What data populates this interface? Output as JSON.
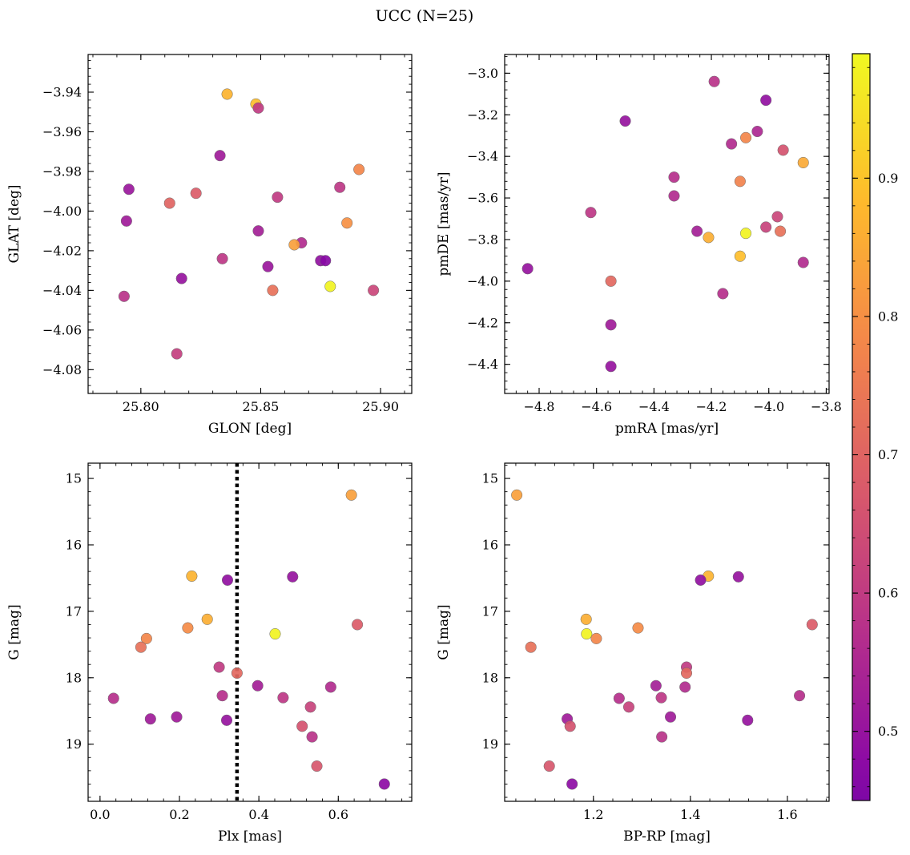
{
  "figure": {
    "title": "UCC (N=25)"
  },
  "colorbar": {
    "cmap": "plasma",
    "range": [
      0.45,
      0.99
    ],
    "ticks": [
      0.5,
      0.6,
      0.7,
      0.8,
      0.9
    ],
    "tick_labels": [
      "0.5",
      "0.6",
      "0.7",
      "0.8",
      "0.9"
    ]
  },
  "chart_data": [
    {
      "type": "scatter",
      "xlabel": "GLON [deg]",
      "ylabel": "GLAT [deg]",
      "xlim": [
        25.778,
        25.913
      ],
      "ylim": [
        -4.092,
        -3.921
      ],
      "y_inverted": false,
      "xticks": [
        25.8,
        25.85,
        25.9
      ],
      "xtick_labels": [
        "25.80",
        "25.85",
        "25.90"
      ],
      "yticks": [
        -3.94,
        -3.96,
        -3.98,
        -4.0,
        -4.02,
        -4.04,
        -4.06,
        -4.08
      ],
      "ytick_labels": [
        "−3.94",
        "−3.96",
        "−3.98",
        "−4.00",
        "−4.02",
        "−4.04",
        "−4.06",
        "−4.08"
      ],
      "x": [
        25.836,
        25.848,
        25.849,
        25.833,
        25.891,
        25.795,
        25.812,
        25.823,
        25.857,
        25.883,
        25.794,
        25.849,
        25.867,
        25.864,
        25.886,
        25.875,
        25.877,
        25.834,
        25.853,
        25.817,
        25.855,
        25.879,
        25.897,
        25.793,
        25.815
      ],
      "y": [
        -3.941,
        -3.946,
        -3.948,
        -3.972,
        -3.979,
        -3.989,
        -3.996,
        -3.991,
        -3.993,
        -3.988,
        -4.005,
        -4.01,
        -4.016,
        -4.017,
        -4.006,
        -4.025,
        -4.025,
        -4.024,
        -4.028,
        -4.034,
        -4.04,
        -4.038,
        -4.04,
        -4.043,
        -4.072
      ],
      "c": [
        0.87,
        0.89,
        0.6,
        0.52,
        0.78,
        0.51,
        0.7,
        0.68,
        0.6,
        0.59,
        0.52,
        0.53,
        0.56,
        0.83,
        0.8,
        0.49,
        0.47,
        0.59,
        0.51,
        0.5,
        0.73,
        0.98,
        0.63,
        0.58,
        0.61
      ]
    },
    {
      "type": "scatter",
      "xlabel": "pmRA [mas/yr]",
      "ylabel": "pmDE [mas/yr]",
      "xlim": [
        -4.92,
        -3.79
      ],
      "ylim": [
        -4.54,
        -2.91
      ],
      "y_inverted": false,
      "xticks": [
        -4.8,
        -4.6,
        -4.4,
        -4.2,
        -4.0,
        -3.8
      ],
      "xtick_labels": [
        "−4.8",
        "−4.6",
        "−4.4",
        "−4.2",
        "−4.0",
        "−3.8"
      ],
      "yticks": [
        -3.0,
        -3.2,
        -3.4,
        -3.6,
        -3.8,
        -4.0,
        -4.2,
        -4.4
      ],
      "ytick_labels": [
        "−3.0",
        "−3.2",
        "−3.4",
        "−3.6",
        "−3.8",
        "−4.0",
        "−4.2",
        "−4.4"
      ],
      "x": [
        -4.19,
        -4.01,
        -4.5,
        -4.04,
        -4.13,
        -4.08,
        -3.95,
        -3.88,
        -4.33,
        -4.1,
        -4.33,
        -4.62,
        -3.97,
        -4.01,
        -3.96,
        -4.08,
        -4.25,
        -4.21,
        -4.1,
        -3.88,
        -4.84,
        -4.55,
        -4.16,
        -4.55,
        -4.55
      ],
      "y": [
        -3.04,
        -3.13,
        -3.23,
        -3.28,
        -3.34,
        -3.31,
        -3.37,
        -3.43,
        -3.5,
        -3.52,
        -3.59,
        -3.67,
        -3.69,
        -3.74,
        -3.76,
        -3.77,
        -3.76,
        -3.79,
        -3.88,
        -3.91,
        -3.94,
        -4.0,
        -4.06,
        -4.21,
        -4.41
      ],
      "c": [
        0.58,
        0.49,
        0.5,
        0.55,
        0.56,
        0.78,
        0.66,
        0.85,
        0.57,
        0.77,
        0.56,
        0.59,
        0.63,
        0.62,
        0.73,
        0.98,
        0.53,
        0.86,
        0.89,
        0.56,
        0.5,
        0.71,
        0.57,
        0.52,
        0.5
      ]
    },
    {
      "type": "scatter",
      "xlabel": "Plx [mas]",
      "ylabel": "G [mag]",
      "xlim": [
        -0.03,
        0.785
      ],
      "ylim": [
        19.86,
        14.77
      ],
      "y_inverted": true,
      "xticks": [
        0.0,
        0.2,
        0.4,
        0.6
      ],
      "xtick_labels": [
        "0.0",
        "0.2",
        "0.4",
        "0.6"
      ],
      "yticks": [
        15,
        16,
        17,
        18,
        19
      ],
      "ytick_labels": [
        "15",
        "16",
        "17",
        "18",
        "19"
      ],
      "vline": 0.345,
      "x": [
        0.633,
        0.231,
        0.321,
        0.485,
        0.27,
        0.648,
        0.221,
        0.441,
        0.117,
        0.103,
        0.3,
        0.345,
        0.397,
        0.581,
        0.461,
        0.308,
        0.034,
        0.53,
        0.127,
        0.193,
        0.319,
        0.509,
        0.534,
        0.546,
        0.716
      ],
      "y": [
        15.25,
        16.47,
        16.53,
        16.48,
        17.12,
        17.2,
        17.25,
        17.34,
        17.41,
        17.54,
        17.84,
        17.93,
        18.12,
        18.14,
        18.3,
        18.27,
        18.31,
        18.44,
        18.62,
        18.59,
        18.64,
        18.73,
        18.89,
        19.33,
        19.6
      ],
      "c": [
        0.83,
        0.87,
        0.49,
        0.5,
        0.86,
        0.68,
        0.79,
        0.98,
        0.78,
        0.73,
        0.6,
        0.71,
        0.53,
        0.56,
        0.59,
        0.57,
        0.57,
        0.62,
        0.52,
        0.52,
        0.5,
        0.66,
        0.58,
        0.67,
        0.48
      ]
    },
    {
      "type": "scatter",
      "xlabel": "BP-RP [mag]",
      "ylabel": "G [mag]",
      "xlim": [
        1.017,
        1.686
      ],
      "ylim": [
        19.86,
        14.77
      ],
      "y_inverted": true,
      "xticks": [
        1.2,
        1.4,
        1.6
      ],
      "xtick_labels": [
        "1.2",
        "1.4",
        "1.6"
      ],
      "yticks": [
        15,
        16,
        17,
        18,
        19
      ],
      "ytick_labels": [
        "15",
        "16",
        "17",
        "18",
        "19"
      ],
      "x": [
        1.042,
        1.437,
        1.421,
        1.499,
        1.185,
        1.651,
        1.292,
        1.186,
        1.206,
        1.071,
        1.392,
        1.392,
        1.329,
        1.389,
        1.34,
        1.625,
        1.253,
        1.273,
        1.146,
        1.359,
        1.518,
        1.152,
        1.341,
        1.109,
        1.156
      ],
      "y": [
        15.25,
        16.47,
        16.53,
        16.48,
        17.12,
        17.2,
        17.25,
        17.34,
        17.41,
        17.54,
        17.84,
        17.93,
        18.12,
        18.14,
        18.3,
        18.27,
        18.31,
        18.44,
        18.62,
        18.59,
        18.64,
        18.73,
        18.89,
        19.33,
        19.6
      ],
      "c": [
        0.83,
        0.87,
        0.49,
        0.5,
        0.86,
        0.68,
        0.79,
        0.98,
        0.78,
        0.73,
        0.6,
        0.71,
        0.53,
        0.56,
        0.59,
        0.57,
        0.57,
        0.62,
        0.52,
        0.52,
        0.5,
        0.66,
        0.58,
        0.67,
        0.48
      ]
    }
  ]
}
